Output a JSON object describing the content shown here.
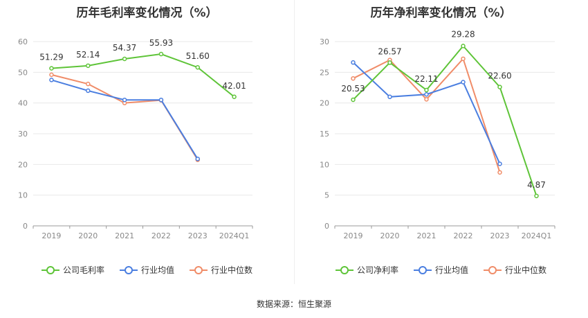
{
  "source": "数据来源：恒生聚源",
  "colors": {
    "company": "#5ec438",
    "industry_avg": "#4a7ee0",
    "industry_median": "#f08c68"
  },
  "chart_data": [
    {
      "type": "line",
      "title": "历年毛利率变化情况（%）",
      "categories": [
        "2019",
        "2020",
        "2021",
        "2022",
        "2023",
        "2024Q1"
      ],
      "ylim": [
        0,
        60
      ],
      "yticks": [
        0,
        10,
        20,
        30,
        40,
        50,
        60
      ],
      "grid": true,
      "legend_position": "bottom",
      "series": [
        {
          "name": "公司毛利率",
          "key": "company",
          "values": [
            51.29,
            52.14,
            54.37,
            55.93,
            51.6,
            42.01
          ],
          "labels": [
            "51.29",
            "52.14",
            "54.37",
            "55.93",
            "51.60",
            "42.01"
          ]
        },
        {
          "name": "行业均值",
          "key": "industry_avg",
          "values": [
            47.5,
            44.0,
            41.0,
            41.0,
            21.8,
            null
          ]
        },
        {
          "name": "行业中位数",
          "key": "industry_median",
          "values": [
            49.2,
            46.2,
            40.0,
            40.9,
            21.5,
            null
          ]
        }
      ]
    },
    {
      "type": "line",
      "title": "历年净利率变化情况（%）",
      "categories": [
        "2019",
        "2020",
        "2021",
        "2022",
        "2023",
        "2024Q1"
      ],
      "ylim": [
        0,
        30
      ],
      "yticks": [
        0,
        5,
        10,
        15,
        20,
        25,
        30
      ],
      "grid": true,
      "legend_position": "bottom",
      "series": [
        {
          "name": "公司净利率",
          "key": "company",
          "values": [
            20.53,
            26.57,
            22.11,
            29.28,
            22.6,
            4.87
          ],
          "labels": [
            "20.53",
            "26.57",
            "22.11",
            "29.28",
            "22.60",
            "4.87"
          ]
        },
        {
          "name": "行业均值",
          "key": "industry_avg",
          "values": [
            26.6,
            21.0,
            21.4,
            23.4,
            10.1,
            null
          ]
        },
        {
          "name": "行业中位数",
          "key": "industry_median",
          "values": [
            24.0,
            27.0,
            20.6,
            27.2,
            8.7,
            null
          ]
        }
      ]
    }
  ]
}
